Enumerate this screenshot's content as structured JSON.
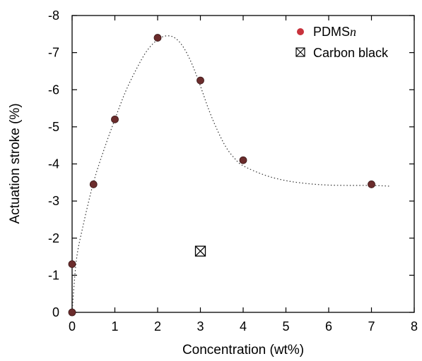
{
  "chart_data": {
    "type": "scatter",
    "xlabel": "Concentration (wt%)",
    "ylabel": "Actuation stroke (%)",
    "xlim": [
      0,
      8
    ],
    "ylim": [
      0,
      -8
    ],
    "y_axis_inverted": true,
    "grid": false,
    "legend_placement": "top-right",
    "x_ticks": [
      "0",
      "1",
      "2",
      "3",
      "4",
      "5",
      "6",
      "7",
      "8"
    ],
    "y_ticks": [
      "0",
      "-1",
      "-2",
      "-3",
      "-4",
      "-5",
      "-6",
      "-7",
      "-8"
    ],
    "series": [
      {
        "name": "PDMSn",
        "name_main": "PDMS",
        "name_italic": "n",
        "marker": "filled-circle",
        "color": "#6b2c2c",
        "x": [
          0,
          0,
          0.5,
          1,
          2,
          3,
          4,
          7
        ],
        "y": [
          0,
          -1.3,
          -3.45,
          -5.2,
          -7.4,
          -6.25,
          -4.1,
          -3.45
        ]
      },
      {
        "name": "Carbon black",
        "marker": "boxed-x",
        "color": "#000000",
        "x": [
          3
        ],
        "y": [
          -1.65
        ]
      }
    ],
    "trend_curve": {
      "style": "dotted",
      "color": "#333333",
      "x": [
        0,
        0.1,
        0.25,
        0.5,
        0.75,
        1,
        1.25,
        1.5,
        1.75,
        2,
        2.2,
        2.4,
        2.6,
        2.8,
        3,
        3.2,
        3.4,
        3.6,
        3.8,
        4,
        4.5,
        5,
        5.5,
        6,
        6.5,
        7,
        7.45
      ],
      "y": [
        0,
        -1.4,
        -2.3,
        -3.5,
        -4.4,
        -5.2,
        -5.95,
        -6.55,
        -7.05,
        -7.35,
        -7.45,
        -7.4,
        -7.15,
        -6.7,
        -6.1,
        -5.45,
        -4.9,
        -4.45,
        -4.15,
        -3.95,
        -3.7,
        -3.55,
        -3.47,
        -3.43,
        -3.42,
        -3.42,
        -3.4
      ]
    }
  }
}
